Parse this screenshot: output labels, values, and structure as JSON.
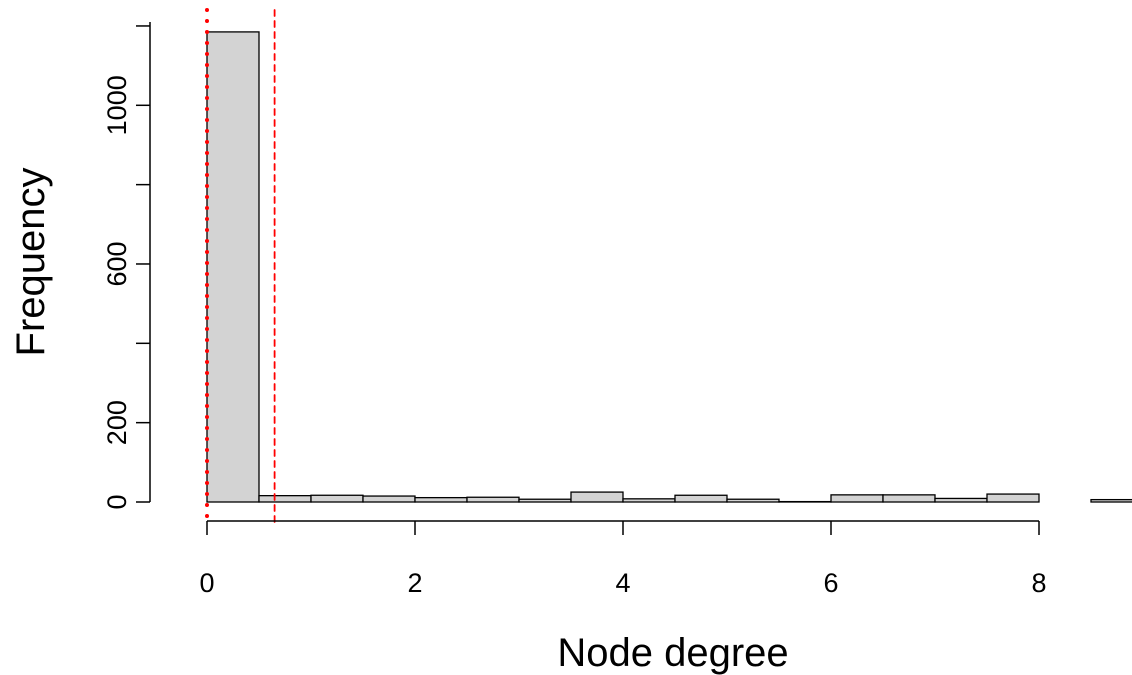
{
  "chart_data": {
    "type": "bar",
    "subtype": "histogram",
    "title": "",
    "xlabel": "Node degree",
    "ylabel": "Frequency",
    "bin_width": 0.5,
    "bins": [
      {
        "start": 0.0,
        "end": 0.5,
        "count": 1185
      },
      {
        "start": 0.5,
        "end": 1.0,
        "count": 16
      },
      {
        "start": 1.0,
        "end": 1.5,
        "count": 17
      },
      {
        "start": 1.5,
        "end": 2.0,
        "count": 15
      },
      {
        "start": 2.0,
        "end": 2.5,
        "count": 11
      },
      {
        "start": 2.5,
        "end": 3.0,
        "count": 12
      },
      {
        "start": 3.0,
        "end": 3.5,
        "count": 7
      },
      {
        "start": 3.5,
        "end": 4.0,
        "count": 25
      },
      {
        "start": 4.0,
        "end": 4.5,
        "count": 8
      },
      {
        "start": 4.5,
        "end": 5.0,
        "count": 17
      },
      {
        "start": 5.0,
        "end": 5.5,
        "count": 7
      },
      {
        "start": 5.5,
        "end": 6.0,
        "count": 1
      },
      {
        "start": 6.0,
        "end": 6.5,
        "count": 18
      },
      {
        "start": 6.5,
        "end": 7.0,
        "count": 18
      },
      {
        "start": 7.0,
        "end": 7.5,
        "count": 9
      },
      {
        "start": 7.5,
        "end": 8.0,
        "count": 20
      },
      {
        "start": 8.0,
        "end": 8.5,
        "count": 0
      },
      {
        "start": 8.5,
        "end": 9.0,
        "count": 6
      }
    ],
    "xlim": [
      0,
      9
    ],
    "ylim": [
      0,
      1200
    ],
    "x_ticks": [
      0,
      2,
      4,
      6,
      8
    ],
    "x_tick_labels": [
      "0",
      "2",
      "4",
      "6",
      "8"
    ],
    "y_ticks": [
      0,
      200,
      400,
      600,
      800,
      1000
    ],
    "y_tick_labels": [
      "0",
      "200",
      "",
      "600",
      "",
      "1000"
    ],
    "reference_lines": [
      {
        "x": 0,
        "style": "dotted",
        "color": "#ff0000"
      },
      {
        "x": 0.65,
        "style": "dashed",
        "color": "#ff0000"
      }
    ],
    "bar_fill": "#d3d3d3",
    "bar_stroke": "#000000",
    "grid": false,
    "legend": "none"
  }
}
